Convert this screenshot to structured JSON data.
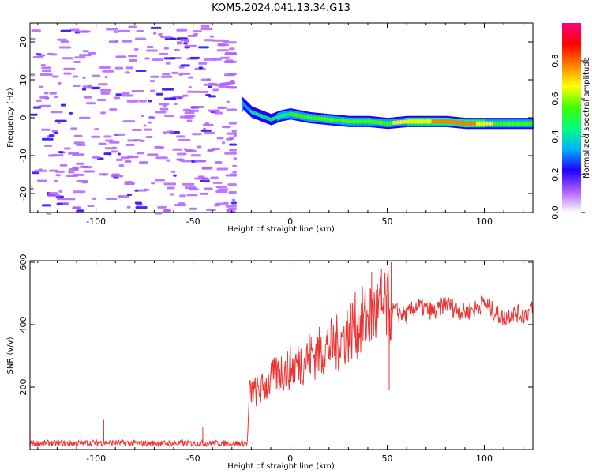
{
  "title": "KOM5.2024.041.13.34.G13",
  "chart_data": [
    {
      "type": "heatmap",
      "name": "spectrogram",
      "xlabel": "Height of straight line (km)",
      "ylabel": "Frequency (Hz)",
      "xlim": [
        -134,
        125
      ],
      "ylim": [
        -25,
        25
      ],
      "xticks": [
        -100,
        -50,
        0,
        50,
        100
      ],
      "yticks": [
        -20,
        -10,
        0,
        10,
        20
      ],
      "colorbar": {
        "label": "Normalized spectral amplitude",
        "range": [
          0.0,
          1.0
        ],
        "ticks": [
          0.0,
          0.2,
          0.4,
          0.6,
          0.8
        ],
        "colors": [
          "#ffffff",
          "#b060ff",
          "#2000ff",
          "#00b0ff",
          "#00ff80",
          "#40ff00",
          "#ffff00",
          "#ff8000",
          "#ff0000",
          "#ff0080"
        ]
      },
      "band": {
        "x": [
          -25,
          -20,
          -15,
          -10,
          -5,
          0,
          5,
          10,
          20,
          30,
          40,
          50,
          60,
          70,
          80,
          90,
          100,
          110,
          125
        ],
        "freq": [
          4.0,
          1.5,
          0.5,
          -0.5,
          0.5,
          1.0,
          0.5,
          0.0,
          -0.5,
          -1.0,
          -1.0,
          -1.5,
          -1.0,
          -1.0,
          -1.0,
          -1.5,
          -1.5,
          -1.5,
          -1.5
        ],
        "amplitude": [
          0.3,
          0.4,
          0.45,
          0.4,
          0.5,
          0.5,
          0.55,
          0.6,
          0.6,
          0.55,
          0.55,
          0.6,
          0.65,
          0.7,
          0.8,
          0.8,
          0.65,
          0.55,
          0.5
        ]
      },
      "noise_region": {
        "x_range": [
          -134,
          -25
        ],
        "amplitude_range": [
          0.0,
          0.3
        ]
      }
    },
    {
      "type": "line",
      "name": "snr",
      "xlabel": "Height of straight line (km)",
      "ylabel": "SNR (v/v)",
      "xlim": [
        -134,
        125
      ],
      "ylim": [
        0,
        605
      ],
      "xticks": [
        -100,
        -50,
        0,
        50,
        100
      ],
      "yticks": [
        200,
        400,
        600
      ],
      "color": "#ee3333",
      "x": [
        -134,
        -110,
        -96,
        -80,
        -60,
        -45,
        -35,
        -22,
        -21,
        -15,
        -10,
        -5,
        0,
        5,
        10,
        15,
        20,
        25,
        30,
        35,
        40,
        45,
        50,
        55,
        60,
        65,
        70,
        75,
        80,
        85,
        90,
        95,
        100,
        105,
        110,
        115,
        120,
        125
      ],
      "y": [
        20,
        20,
        22,
        20,
        20,
        20,
        20,
        20,
        180,
        190,
        220,
        250,
        260,
        280,
        300,
        310,
        330,
        340,
        380,
        400,
        420,
        440,
        450,
        440,
        430,
        460,
        450,
        440,
        470,
        450,
        440,
        450,
        470,
        440,
        420,
        440,
        430,
        450
      ],
      "spikes": [
        {
          "x": -133,
          "y": 55
        },
        {
          "x": -96,
          "y": 95
        },
        {
          "x": -45,
          "y": 70
        },
        {
          "x": 42,
          "y": 570
        },
        {
          "x": 47,
          "y": 580
        },
        {
          "x": 52,
          "y": 600
        },
        {
          "x": 51,
          "y": 190
        }
      ]
    }
  ]
}
